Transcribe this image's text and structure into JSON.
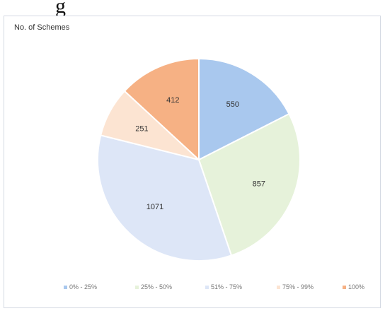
{
  "page_caption": "g",
  "chart_data": {
    "type": "pie",
    "title": "No. of Schemes",
    "categories": [
      "0% - 25%",
      "25% - 50%",
      "51% - 75%",
      "75% - 99%",
      "100%"
    ],
    "values": [
      550,
      857,
      1071,
      251,
      412
    ],
    "data_labels": [
      "550",
      "857",
      "1071",
      "251",
      "412"
    ],
    "colors": [
      "#a9c8ee",
      "#e6f2da",
      "#dde6f7",
      "#fce4d2",
      "#f6b184"
    ],
    "start_angle_deg": 0,
    "direction": "clockwise",
    "legend_position": "bottom"
  }
}
